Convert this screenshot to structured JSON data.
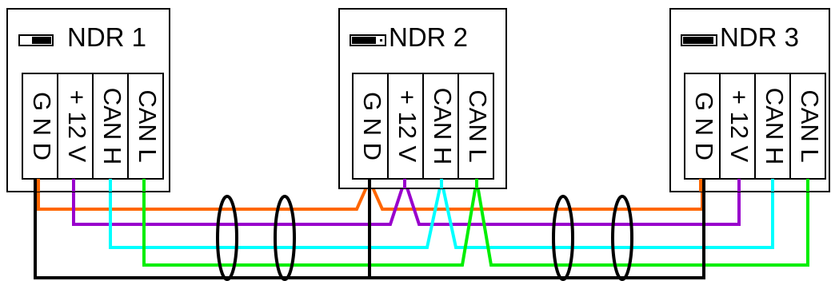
{
  "colors": {
    "gnd": "#000000",
    "v12": "#ff6600",
    "canh": "#9900cc",
    "canl": "#00ffff",
    "spare": "#00ee00"
  },
  "nodes": [
    {
      "title": "NDR 1",
      "switch": "dip-switch-icon",
      "terminals": [
        "G N D",
        "+ 12 V",
        "CAN H",
        "CAN L"
      ]
    },
    {
      "title": "NDR 2",
      "switch": "dip-switch-icon",
      "terminals": [
        "G N D",
        "+ 12 V",
        "CAN H",
        "CAN L"
      ]
    },
    {
      "title": "NDR 3",
      "switch": "dip-switch-icon",
      "terminals": [
        "G N D",
        "+ 12 V",
        "CAN H",
        "CAN L"
      ]
    }
  ],
  "ferrites": [
    "ferrite-ring-icon",
    "ferrite-ring-icon",
    "ferrite-ring-icon",
    "ferrite-ring-icon"
  ]
}
